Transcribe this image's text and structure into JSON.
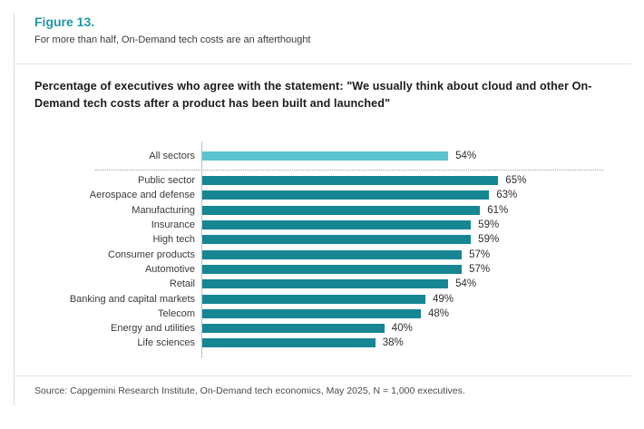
{
  "page": {
    "figure_label": "Figure 13.",
    "figure_caption": "For more than half, On-Demand tech costs are an afterthought",
    "source": "Source: Capgemini Research Institute, On-Demand tech economics, May 2025, N = 1,000 executives."
  },
  "colors": {
    "accent_teal": "#1f96a5",
    "highlight_bar": "#5bc3cf",
    "sector_bar": "#178693",
    "text_dark": "#3a3a3a"
  },
  "chart_data": {
    "type": "bar",
    "orientation": "horizontal",
    "title": "Percentage of executives who agree with the statement: \"We usually think about cloud and other On-Demand tech costs after a product has been built and launched\"",
    "unit": "%",
    "xlim": [
      0,
      100
    ],
    "grid": false,
    "legend": false,
    "highlight_category": "All sectors",
    "separator_after_first": true,
    "categories": [
      "All sectors",
      "Public sector",
      "Aerospace and defense",
      "Manufacturing",
      "Insurance",
      "High tech",
      "Consumer products",
      "Automotive",
      "Retail",
      "Banking and capital markets",
      "Telecom",
      "Energy and utilities",
      "Life sciences"
    ],
    "values": [
      54,
      65,
      63,
      61,
      59,
      59,
      57,
      57,
      54,
      49,
      48,
      40,
      38
    ],
    "value_labels": [
      "54%",
      "65%",
      "63%",
      "61%",
      "59%",
      "59%",
      "57%",
      "57%",
      "54%",
      "49%",
      "48%",
      "40%",
      "38%"
    ]
  }
}
